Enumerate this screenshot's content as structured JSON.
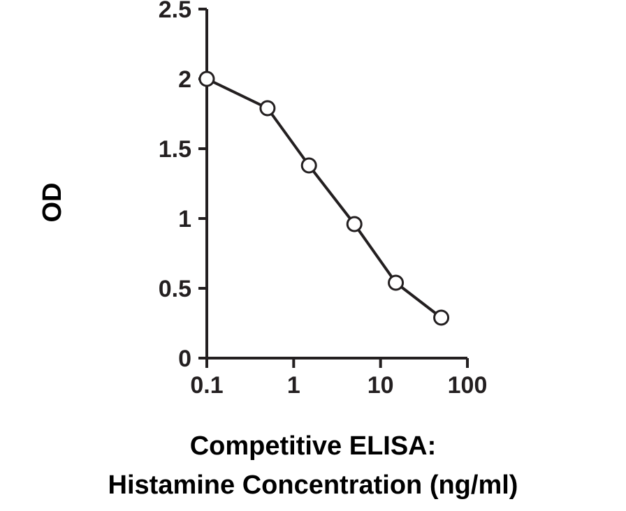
{
  "chart_data": {
    "type": "line",
    "xscale": "log",
    "x": [
      0.1,
      0.5,
      1.5,
      5,
      15,
      50
    ],
    "series": [
      {
        "values": [
          2.0,
          1.79,
          1.38,
          0.96,
          0.54,
          0.29
        ]
      }
    ],
    "xticks": [
      "0.1",
      "1",
      "10",
      "100"
    ],
    "xtick_values": [
      0.1,
      1,
      10,
      100
    ],
    "yticks": [
      "0",
      "0.5",
      "1",
      "1.5",
      "2",
      "2.5"
    ],
    "ytick_values": [
      0,
      0.5,
      1,
      1.5,
      2,
      2.5
    ],
    "xlim": [
      0.1,
      100
    ],
    "ylim": [
      0,
      2.5
    ],
    "grid": false,
    "colors": {
      "line": "#231f20",
      "marker_fill": "#ffffff",
      "axis": "#231f20"
    }
  },
  "labels": {
    "ylabel": "OD",
    "xlabel_line1": "Competitive ELISA:",
    "xlabel_line2": "Histamine Concentration (ng/ml)"
  }
}
